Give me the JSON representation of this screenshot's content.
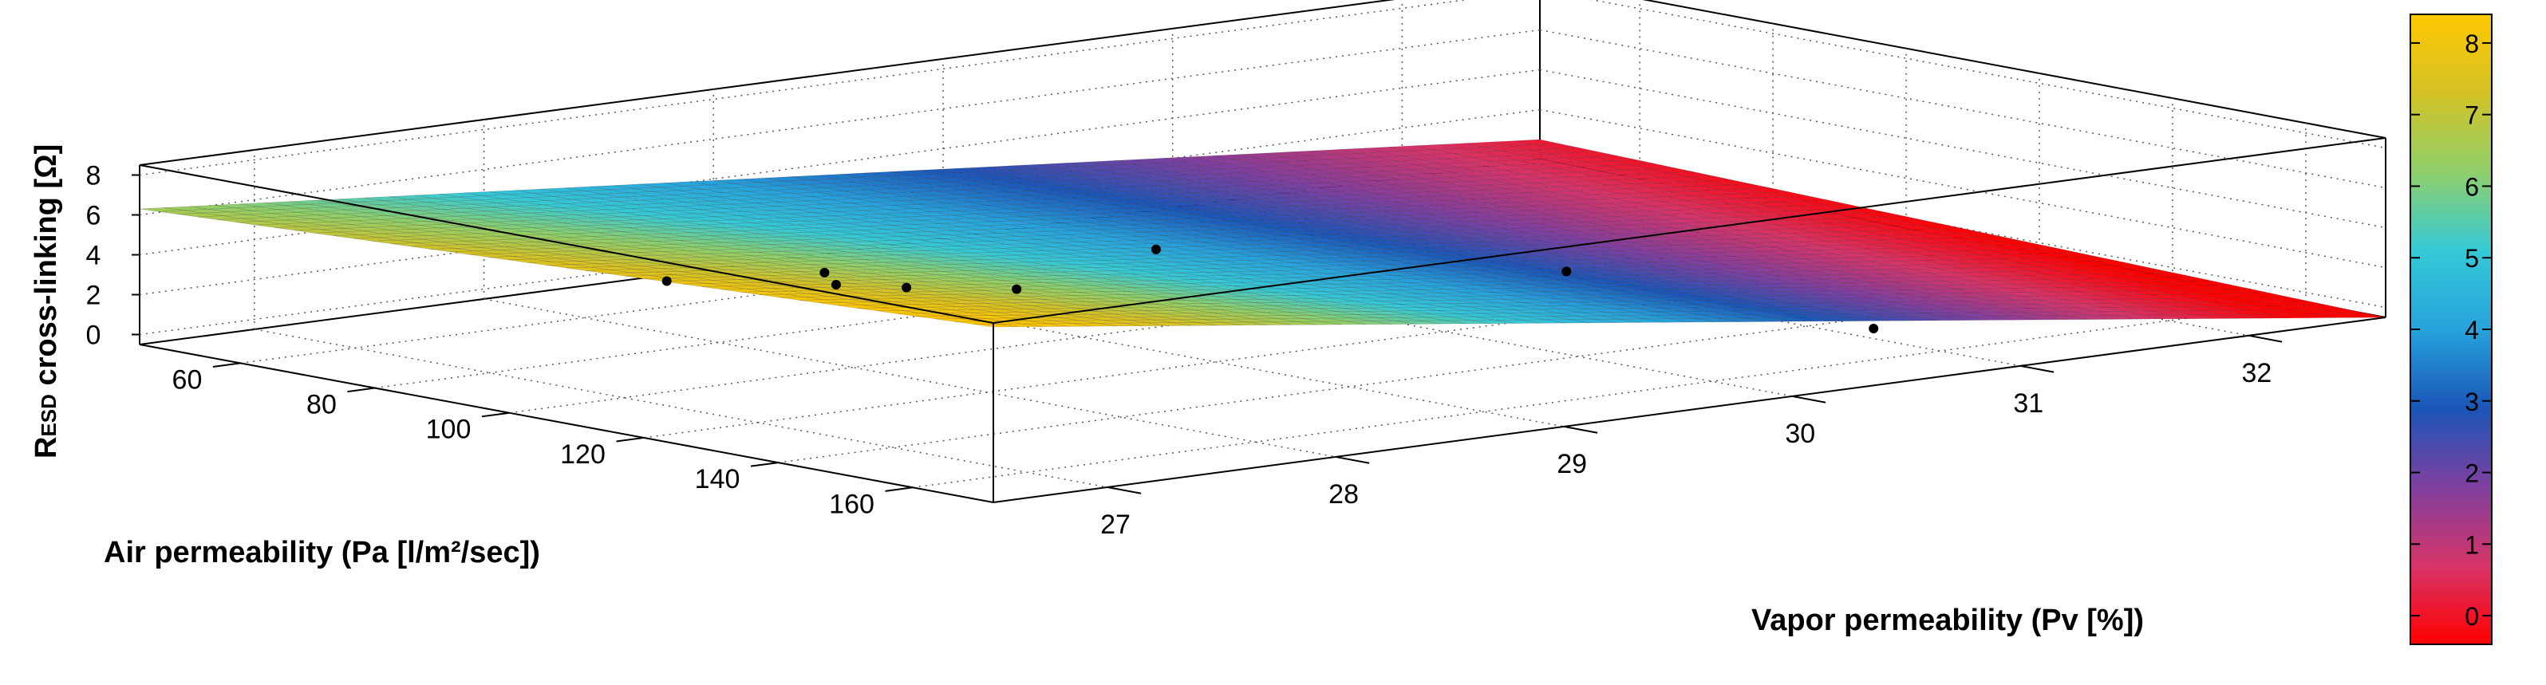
{
  "chart_data": {
    "type": "surface",
    "view": "3d",
    "xlabel": "Vapor permeability (Pv [%])",
    "ylabel": "Air permeability (Pa [l/m²/sec])",
    "zlabel_main": "R",
    "zlabel_sub": "ESD",
    "zlabel_rest": " cross-linking [Ω]",
    "x_ticks": [
      "27",
      "28",
      "29",
      "30",
      "31",
      "32"
    ],
    "y_ticks": [
      "60",
      "80",
      "100",
      "120",
      "140",
      "160"
    ],
    "z_ticks": [
      "0",
      "2",
      "4",
      "6",
      "8"
    ],
    "colorbar_ticks": [
      "0",
      "1",
      "2",
      "3",
      "4",
      "5",
      "6",
      "7",
      "8"
    ],
    "xlim": [
      26.5,
      32.6
    ],
    "ylim": [
      45,
      172
    ],
    "zlim": [
      -0.5,
      8.5
    ],
    "colormap": [
      "#ff0000",
      "#d63468",
      "#7f3f9f",
      "#1a56b8",
      "#27a3dc",
      "#35c9d6",
      "#8fcf6a",
      "#d4c226",
      "#ffc800"
    ],
    "grid": true,
    "surface_corners": [
      {
        "x": 26.5,
        "y": 45,
        "z": 6.3
      },
      {
        "x": 32.6,
        "y": 45,
        "z": 0.5
      },
      {
        "x": 32.6,
        "y": 172,
        "z": -0.5
      },
      {
        "x": 26.5,
        "y": 172,
        "z": 8.3
      }
    ],
    "points": [
      {
        "x": 28.0,
        "y": 108,
        "z": 4.0
      },
      {
        "x": 28.3,
        "y": 62,
        "z": 1.0
      },
      {
        "x": 28.6,
        "y": 77,
        "z": 1.3
      },
      {
        "x": 28.9,
        "y": 65,
        "z": 0.7
      },
      {
        "x": 29.3,
        "y": 80,
        "z": 0.2
      },
      {
        "x": 30.2,
        "y": 70,
        "z": 0.2
      },
      {
        "x": 31.0,
        "y": 104,
        "z": 0.0
      },
      {
        "x": 31.0,
        "y": 150,
        "z": 0.0
      }
    ]
  }
}
